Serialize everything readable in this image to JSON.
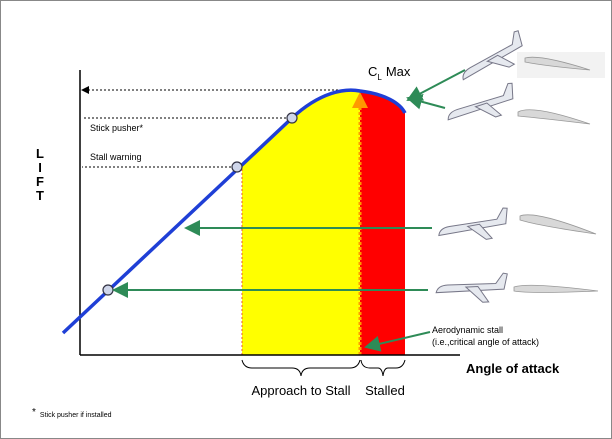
{
  "labels": {
    "cl_max": {
      "symbol": "C",
      "subscript": "L",
      "suffix": "Max"
    },
    "stick_pusher": "Stick pusher*",
    "stall_warning": "Stall warning",
    "y_axis": [
      "L",
      "I",
      "F",
      "T"
    ],
    "x_axis": "Angle of attack",
    "approach": "Approach to Stall",
    "stalled": "Stalled",
    "aero_stall": [
      "Aerodynamic stall",
      "(i.e.,critical angle of attack)"
    ]
  },
  "footnote": {
    "mark": "*",
    "text": "Stick pusher if installed"
  }
}
